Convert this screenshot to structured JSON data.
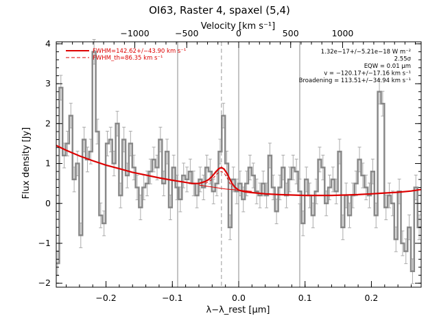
{
  "title": "OI63, Raster 4, spaxel (5,4)",
  "chart_data": {
    "type": "line",
    "xlabel": "λ−λ_rest [μm]",
    "ylabel": "Flux density [Jy]",
    "top_xlabel": "Velocity [km s⁻¹]",
    "xlim": [
      -0.275,
      0.275
    ],
    "ylim": [
      -2.1,
      4.05
    ],
    "top_xlim": [
      -1756,
      1756
    ],
    "xticks": [
      {
        "v": -0.2,
        "label": "−0.2"
      },
      {
        "v": -0.1,
        "label": "−0.1"
      },
      {
        "v": 0.0,
        "label": "0.0"
      },
      {
        "v": 0.1,
        "label": "0.1"
      },
      {
        "v": 0.2,
        "label": "0.2"
      }
    ],
    "yticks": [
      {
        "v": -2,
        "label": "−2"
      },
      {
        "v": -1,
        "label": "−1"
      },
      {
        "v": 0,
        "label": "0"
      },
      {
        "v": 1,
        "label": "1"
      },
      {
        "v": 2,
        "label": "2"
      },
      {
        "v": 3,
        "label": "3"
      },
      {
        "v": 4,
        "label": "4"
      }
    ],
    "top_xticks": [
      {
        "v": -1000,
        "label": "−1000"
      },
      {
        "v": -500,
        "label": "−500"
      },
      {
        "v": 0,
        "label": "0"
      },
      {
        "v": 500,
        "label": "500"
      },
      {
        "v": 1000,
        "label": "1000"
      }
    ],
    "vlines_solid": [
      -0.092,
      0.0,
      0.092
    ],
    "vline_dashed": -0.026,
    "spectrum": {
      "color": "#888888",
      "x": [
        -0.273,
        -0.268,
        -0.263,
        -0.258,
        -0.253,
        -0.248,
        -0.243,
        -0.238,
        -0.233,
        -0.228,
        -0.223,
        -0.218,
        -0.213,
        -0.208,
        -0.203,
        -0.198,
        -0.193,
        -0.188,
        -0.183,
        -0.178,
        -0.173,
        -0.168,
        -0.163,
        -0.158,
        -0.153,
        -0.148,
        -0.143,
        -0.138,
        -0.133,
        -0.128,
        -0.123,
        -0.118,
        -0.113,
        -0.108,
        -0.103,
        -0.098,
        -0.093,
        -0.088,
        -0.083,
        -0.078,
        -0.073,
        -0.068,
        -0.063,
        -0.058,
        -0.053,
        -0.048,
        -0.043,
        -0.038,
        -0.033,
        -0.028,
        -0.023,
        -0.018,
        -0.013,
        -0.008,
        -0.003,
        0.002,
        0.007,
        0.012,
        0.017,
        0.022,
        0.027,
        0.032,
        0.037,
        0.042,
        0.047,
        0.052,
        0.057,
        0.062,
        0.067,
        0.072,
        0.077,
        0.082,
        0.087,
        0.092,
        0.097,
        0.102,
        0.107,
        0.112,
        0.117,
        0.122,
        0.127,
        0.132,
        0.137,
        0.142,
        0.147,
        0.152,
        0.157,
        0.162,
        0.167,
        0.172,
        0.177,
        0.182,
        0.187,
        0.192,
        0.197,
        0.202,
        0.207,
        0.212,
        0.217,
        0.222,
        0.227,
        0.232,
        0.237,
        0.242,
        0.247,
        0.252,
        0.257,
        0.262,
        0.267,
        0.272
      ],
      "y": [
        -1.5,
        2.9,
        1.2,
        1.5,
        2.2,
        0.6,
        1.0,
        -0.8,
        1.6,
        1.1,
        1.3,
        3.8,
        1.8,
        -0.3,
        -0.5,
        1.5,
        1.6,
        1.0,
        2.0,
        0.2,
        1.6,
        0.7,
        1.5,
        0.9,
        0.4,
        -0.1,
        0.4,
        0.5,
        0.8,
        1.1,
        0.9,
        1.6,
        0.5,
        1.3,
        -0.1,
        0.9,
        0.4,
        0.1,
        0.7,
        0.6,
        0.8,
        0.5,
        0.2,
        0.6,
        0.4,
        0.9,
        0.8,
        0.3,
        0.5,
        1.3,
        2.2,
        1.0,
        -0.6,
        0.6,
        0.3,
        0.5,
        0.1,
        0.5,
        0.9,
        0.7,
        0.3,
        0.2,
        0.5,
        0.2,
        1.2,
        0.4,
        -0.2,
        0.4,
        0.9,
        0.2,
        0.6,
        0.9,
        0.8,
        0.3,
        -0.5,
        0.6,
        0.2,
        -0.3,
        0.3,
        1.1,
        0.9,
        0.0,
        0.4,
        0.6,
        0.3,
        1.3,
        -0.6,
        0.2,
        -0.3,
        0.2,
        0.5,
        1.1,
        0.7,
        0.4,
        0.2,
        0.8,
        -0.3,
        2.8,
        2.5,
        -0.1,
        0.2,
        0.0,
        -0.9,
        0.3,
        -1.0,
        -1.2,
        -0.6,
        -1.7,
        0.4,
        -0.6
      ]
    },
    "errors": {
      "color": "#aaaaaa",
      "half_width": 0.31
    },
    "fit": {
      "color": "#dd0000",
      "x": [
        -0.275,
        -0.26,
        -0.24,
        -0.22,
        -0.2,
        -0.18,
        -0.16,
        -0.14,
        -0.12,
        -0.1,
        -0.085,
        -0.07,
        -0.06,
        -0.05,
        -0.045,
        -0.04,
        -0.035,
        -0.03,
        -0.026,
        -0.022,
        -0.018,
        -0.014,
        -0.01,
        -0.006,
        0.0,
        0.01,
        0.02,
        0.04,
        0.06,
        0.08,
        0.1,
        0.12,
        0.14,
        0.16,
        0.18,
        0.2,
        0.22,
        0.24,
        0.26,
        0.275
      ],
      "y": [
        1.45,
        1.33,
        1.19,
        1.07,
        0.96,
        0.87,
        0.78,
        0.71,
        0.64,
        0.58,
        0.54,
        0.5,
        0.5,
        0.55,
        0.6,
        0.68,
        0.78,
        0.87,
        0.9,
        0.86,
        0.76,
        0.63,
        0.5,
        0.41,
        0.33,
        0.29,
        0.27,
        0.24,
        0.22,
        0.21,
        0.2,
        0.2,
        0.2,
        0.21,
        0.22,
        0.24,
        0.26,
        0.28,
        0.31,
        0.35
      ]
    },
    "continuum": {
      "color": "#dd0000",
      "x": [
        -0.06,
        -0.04,
        -0.02,
        0.0,
        0.02
      ],
      "y": [
        0.46,
        0.41,
        0.36,
        0.33,
        0.3
      ]
    },
    "fit_dashed": {
      "color": "#dd0000",
      "x": [
        -0.05,
        -0.04,
        -0.035,
        -0.03,
        -0.026,
        -0.022,
        -0.018,
        -0.014,
        -0.01
      ],
      "y": [
        0.5,
        0.6,
        0.7,
        0.78,
        0.8,
        0.76,
        0.66,
        0.52,
        0.42
      ]
    },
    "legend": [
      {
        "label": "FWHM=142.62+/−43.90 km s⁻¹",
        "style": "solid"
      },
      {
        "label": "FWHM_th=86.35 km s⁻¹",
        "style": "dashed"
      }
    ],
    "annotations": [
      "1.32e−17+/−5.21e−18 W m⁻²",
      "2.55σ",
      "EQW = 0.01 μm",
      "v = −120.17+/−17.16 km s⁻¹",
      "Broadening = 113.51+/−34.94 km s⁻¹"
    ]
  }
}
